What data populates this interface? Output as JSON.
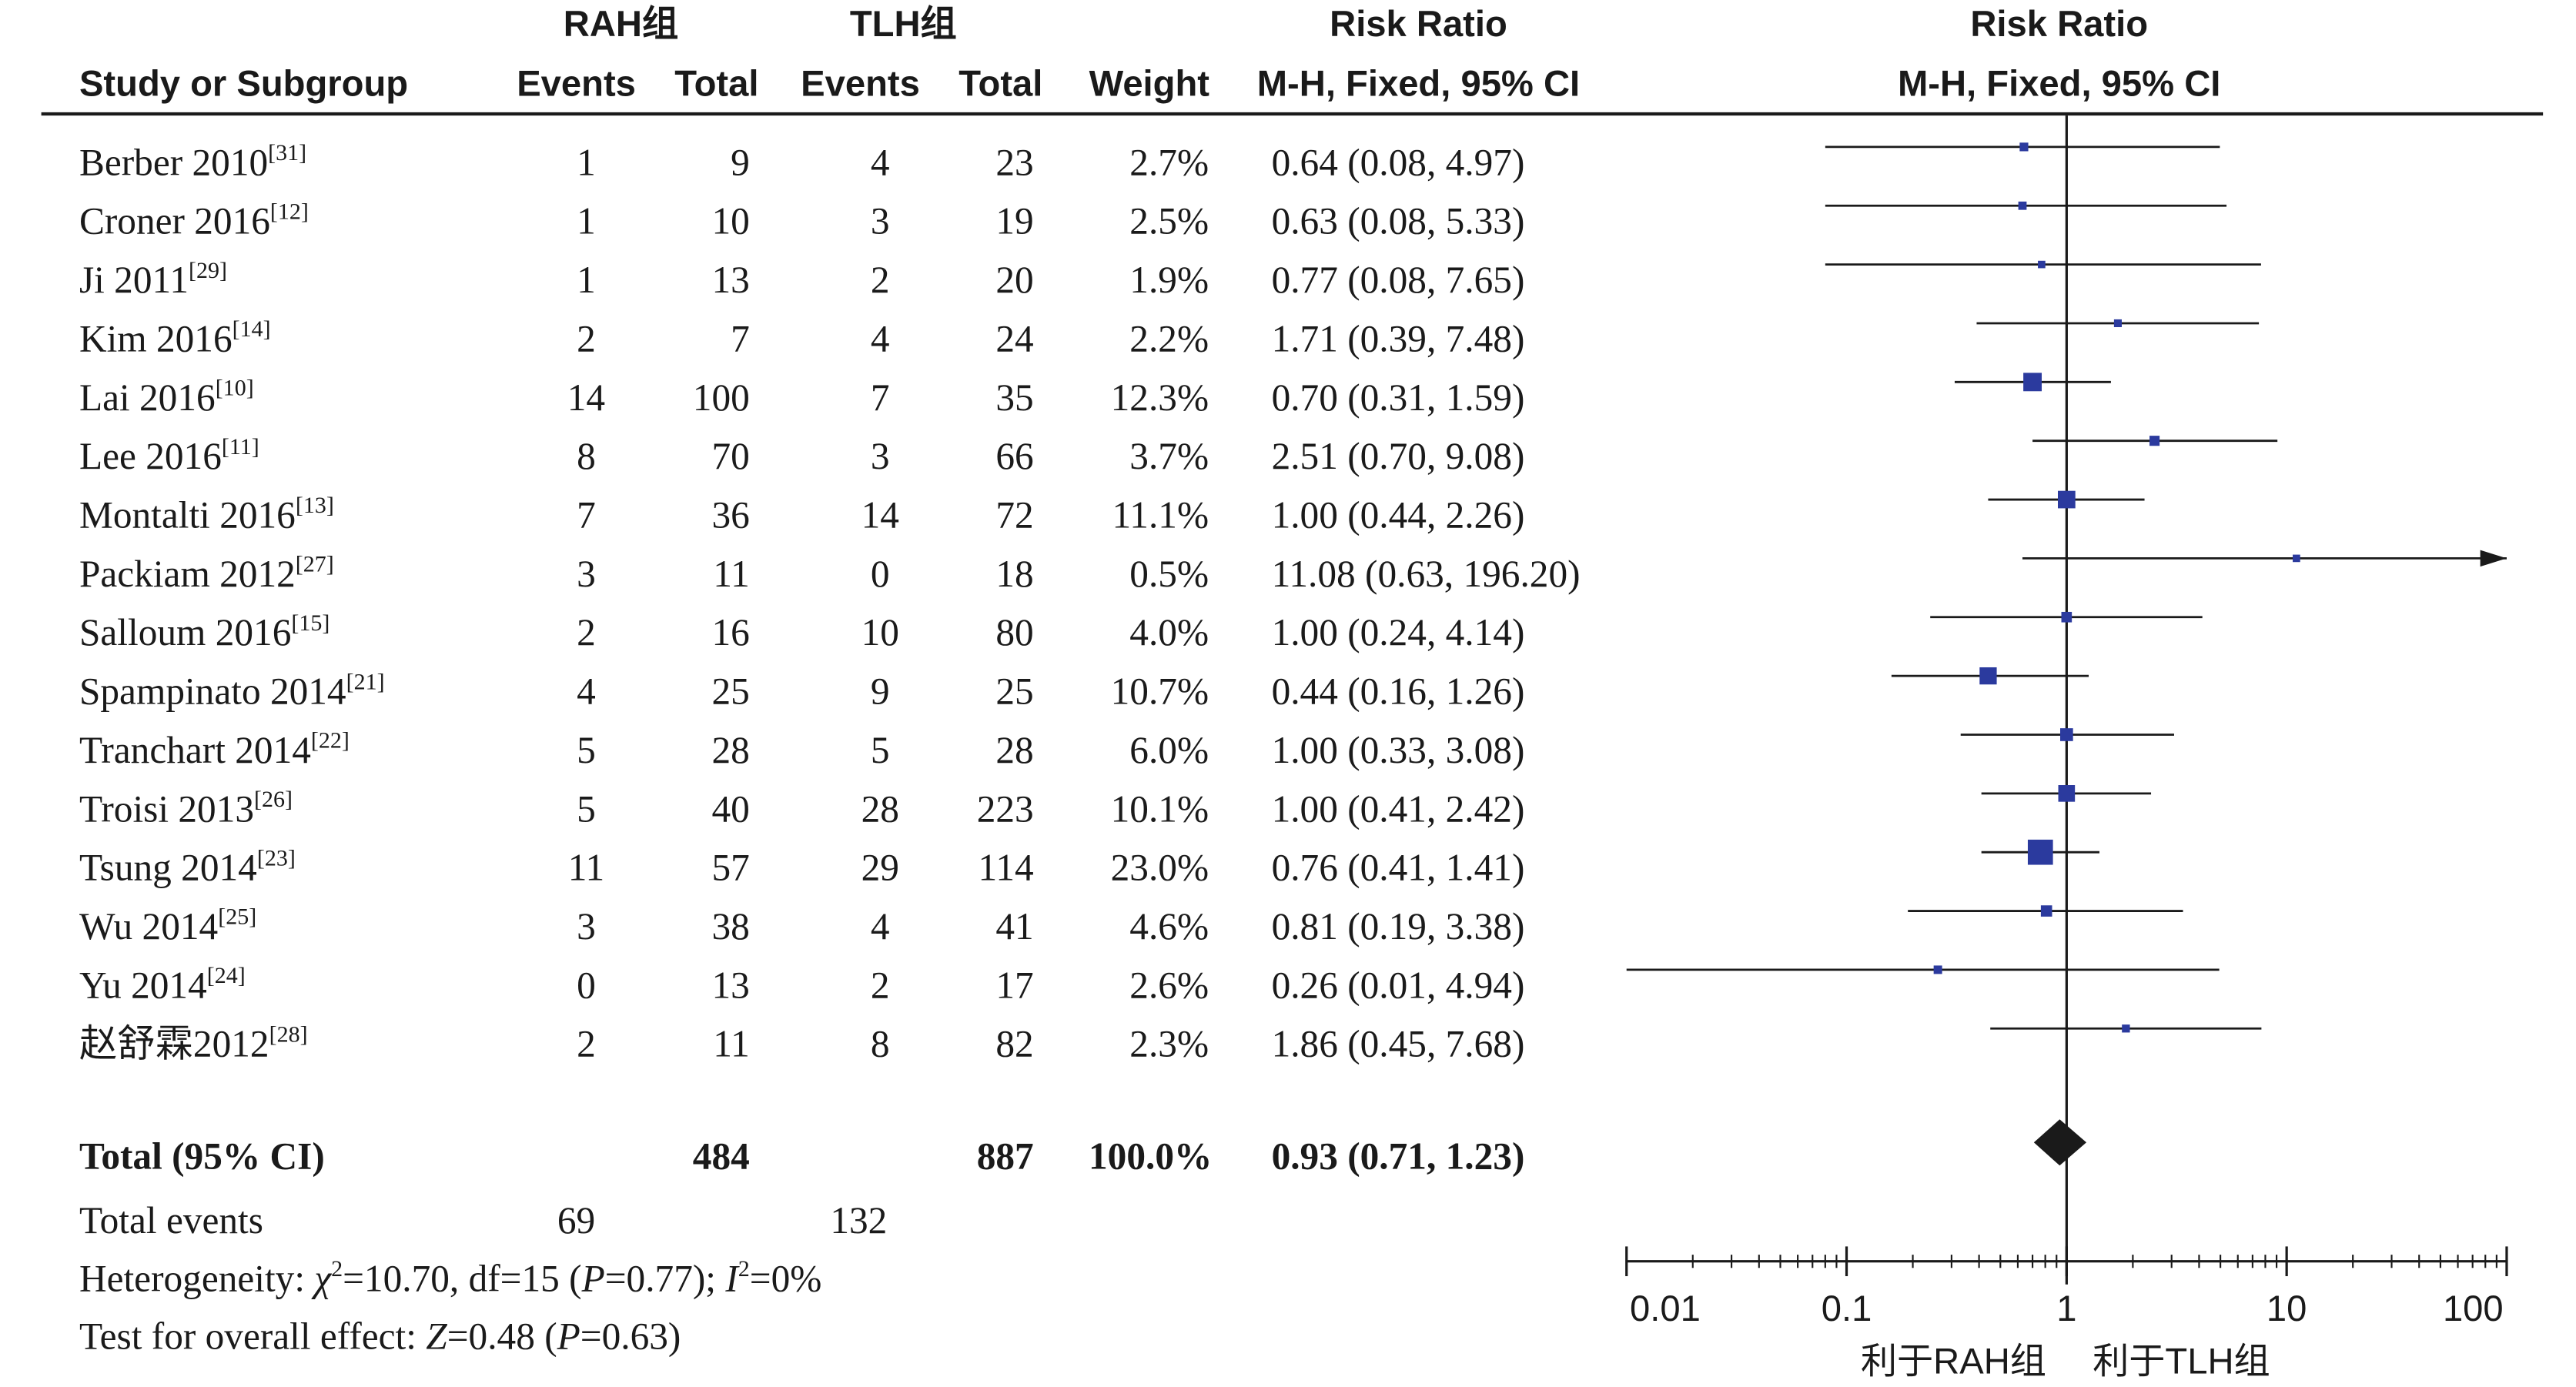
{
  "header": {
    "group1": "RAH组",
    "group2": "TLH组",
    "rr_title_left": "Risk Ratio",
    "rr_method_left": "M-H, Fixed, 95% CI",
    "rr_title_right": "Risk Ratio",
    "rr_method_right": "M-H, Fixed, 95% CI",
    "study_col": "Study or Subgroup",
    "events1": "Events",
    "total1": "Total",
    "events2": "Events",
    "total2": "Total",
    "weight": "Weight"
  },
  "studies": [
    {
      "name": "Berber 2010",
      "ref": "[31]",
      "e1": "1",
      "t1": "9",
      "e2": "4",
      "t2": "23",
      "weight": "2.7%",
      "ci_text": "0.64 (0.08, 4.97)"
    },
    {
      "name": "Croner 2016",
      "ref": "[12]",
      "e1": "1",
      "t1": "10",
      "e2": "3",
      "t2": "19",
      "weight": "2.5%",
      "ci_text": "0.63 (0.08, 5.33)"
    },
    {
      "name": "Ji 2011",
      "ref": "[29]",
      "e1": "1",
      "t1": "13",
      "e2": "2",
      "t2": "20",
      "weight": "1.9%",
      "ci_text": "0.77 (0.08, 7.65)"
    },
    {
      "name": "Kim 2016",
      "ref": "[14]",
      "e1": "2",
      "t1": "7",
      "e2": "4",
      "t2": "24",
      "weight": "2.2%",
      "ci_text": "1.71 (0.39, 7.48)"
    },
    {
      "name": "Lai 2016",
      "ref": "[10]",
      "e1": "14",
      "t1": "100",
      "e2": "7",
      "t2": "35",
      "weight": "12.3%",
      "ci_text": "0.70 (0.31, 1.59)"
    },
    {
      "name": "Lee 2016",
      "ref": "[11]",
      "e1": "8",
      "t1": "70",
      "e2": "3",
      "t2": "66",
      "weight": "3.7%",
      "ci_text": "2.51 (0.70, 9.08)"
    },
    {
      "name": "Montalti 2016",
      "ref": "[13]",
      "e1": "7",
      "t1": "36",
      "e2": "14",
      "t2": "72",
      "weight": "11.1%",
      "ci_text": "1.00 (0.44, 2.26)"
    },
    {
      "name": "Packiam 2012",
      "ref": "[27]",
      "e1": "3",
      "t1": "11",
      "e2": "0",
      "t2": "18",
      "weight": "0.5%",
      "ci_text": "11.08 (0.63, 196.20)"
    },
    {
      "name": "Salloum 2016",
      "ref": "[15]",
      "e1": "2",
      "t1": "16",
      "e2": "10",
      "t2": "80",
      "weight": "4.0%",
      "ci_text": "1.00 (0.24, 4.14)"
    },
    {
      "name": "Spampinato 2014",
      "ref": "[21]",
      "e1": "4",
      "t1": "25",
      "e2": "9",
      "t2": "25",
      "weight": "10.7%",
      "ci_text": "0.44 (0.16, 1.26)"
    },
    {
      "name": "Tranchart 2014",
      "ref": "[22]",
      "e1": "5",
      "t1": "28",
      "e2": "5",
      "t2": "28",
      "weight": "6.0%",
      "ci_text": "1.00 (0.33, 3.08)"
    },
    {
      "name": "Troisi 2013",
      "ref": "[26]",
      "e1": "5",
      "t1": "40",
      "e2": "28",
      "t2": "223",
      "weight": "10.1%",
      "ci_text": "1.00 (0.41, 2.42)"
    },
    {
      "name": "Tsung 2014",
      "ref": "[23]",
      "e1": "11",
      "t1": "57",
      "e2": "29",
      "t2": "114",
      "weight": "23.0%",
      "ci_text": "0.76 (0.41, 1.41)"
    },
    {
      "name": "Wu 2014",
      "ref": "[25]",
      "e1": "3",
      "t1": "38",
      "e2": "4",
      "t2": "41",
      "weight": "4.6%",
      "ci_text": "0.81 (0.19, 3.38)"
    },
    {
      "name": "Yu 2014",
      "ref": "[24]",
      "e1": "0",
      "t1": "13",
      "e2": "2",
      "t2": "17",
      "weight": "2.6%",
      "ci_text": "0.26 (0.01, 4.94)"
    },
    {
      "name": "赵舒霖2012",
      "ref": "[28]",
      "e1": "2",
      "t1": "11",
      "e2": "8",
      "t2": "82",
      "weight": "2.3%",
      "ci_text": "1.86 (0.45, 7.68)"
    }
  ],
  "total": {
    "label": "Total (95% CI)",
    "t1": "484",
    "t2": "887",
    "weight": "100.0%",
    "ci_text": "0.93 (0.71, 1.23)"
  },
  "total_events": {
    "label": "Total events",
    "e1": "69",
    "e2": "132"
  },
  "heterogeneity": {
    "prefix": "Heterogeneity: ",
    "chi": "χ",
    "chi_val": "=10.70, df=15 (",
    "p": "P",
    "p_val": "=0.77); ",
    "i": "I",
    "i_val": "=0%"
  },
  "overall": {
    "prefix": "Test for overall effect: ",
    "z": "Z",
    "z_val": "=0.48 (",
    "p": "P",
    "p_val": "=0.63)"
  },
  "axis": {
    "ticks": [
      "0.01",
      "0.1",
      "1",
      "10",
      "100"
    ],
    "favours_left": "利于RAH组",
    "favours_right": "利于TLH组"
  },
  "colors": {
    "marker": "#2b3a9e",
    "ink": "#1a1a1a"
  },
  "chart_data": {
    "type": "forest",
    "xscale": "log",
    "xlim": [
      0.01,
      100
    ],
    "reference_line": 1,
    "studies": [
      {
        "study": "Berber 2010",
        "rr": 0.64,
        "lo": 0.08,
        "hi": 4.97,
        "weight": 2.7
      },
      {
        "study": "Croner 2016",
        "rr": 0.63,
        "lo": 0.08,
        "hi": 5.33,
        "weight": 2.5
      },
      {
        "study": "Ji 2011",
        "rr": 0.77,
        "lo": 0.08,
        "hi": 7.65,
        "weight": 1.9
      },
      {
        "study": "Kim 2016",
        "rr": 1.71,
        "lo": 0.39,
        "hi": 7.48,
        "weight": 2.2
      },
      {
        "study": "Lai 2016",
        "rr": 0.7,
        "lo": 0.31,
        "hi": 1.59,
        "weight": 12.3
      },
      {
        "study": "Lee 2016",
        "rr": 2.51,
        "lo": 0.7,
        "hi": 9.08,
        "weight": 3.7
      },
      {
        "study": "Montalti 2016",
        "rr": 1.0,
        "lo": 0.44,
        "hi": 2.26,
        "weight": 11.1
      },
      {
        "study": "Packiam 2012",
        "rr": 11.08,
        "lo": 0.63,
        "hi": 196.2,
        "weight": 0.5
      },
      {
        "study": "Salloum 2016",
        "rr": 1.0,
        "lo": 0.24,
        "hi": 4.14,
        "weight": 4.0
      },
      {
        "study": "Spampinato 2014",
        "rr": 0.44,
        "lo": 0.16,
        "hi": 1.26,
        "weight": 10.7
      },
      {
        "study": "Tranchart 2014",
        "rr": 1.0,
        "lo": 0.33,
        "hi": 3.08,
        "weight": 6.0
      },
      {
        "study": "Troisi 2013",
        "rr": 1.0,
        "lo": 0.41,
        "hi": 2.42,
        "weight": 10.1
      },
      {
        "study": "Tsung 2014",
        "rr": 0.76,
        "lo": 0.41,
        "hi": 1.41,
        "weight": 23.0
      },
      {
        "study": "Wu 2014",
        "rr": 0.81,
        "lo": 0.19,
        "hi": 3.38,
        "weight": 4.6
      },
      {
        "study": "Yu 2014",
        "rr": 0.26,
        "lo": 0.01,
        "hi": 4.94,
        "weight": 2.6
      },
      {
        "study": "赵舒霖2012",
        "rr": 1.86,
        "lo": 0.45,
        "hi": 7.68,
        "weight": 2.3
      }
    ],
    "pooled": {
      "rr": 0.93,
      "lo": 0.71,
      "hi": 1.23
    }
  }
}
